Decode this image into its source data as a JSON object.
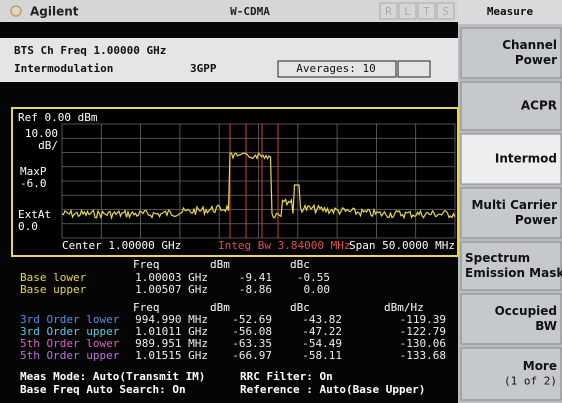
{
  "header": {
    "brand": "Agilent",
    "mode": "W-CDMA",
    "indicators": [
      "R",
      "L",
      "T",
      "S"
    ]
  },
  "menu": {
    "title": "Measure",
    "buttons": [
      [
        "Channel",
        "Power"
      ],
      [
        "ACPR"
      ],
      [
        "Intermod"
      ],
      [
        "Multi Carrier",
        "Power"
      ],
      [
        "Spectrum",
        "Emission Mask"
      ],
      [
        "Occupied",
        "BW"
      ],
      [
        "More",
        "(1 of 2)"
      ]
    ]
  },
  "info": {
    "line1": "BTS   Ch Freq 1.00000 GHz",
    "line2": "Intermodulation",
    "standard": "3GPP",
    "averages": "Averages: 10"
  },
  "plot": {
    "ref": "Ref 0.00 dBm",
    "scale": [
      "10.00",
      "dB/"
    ],
    "detector": [
      "MaxP",
      "-6.0"
    ],
    "atten": [
      "ExtAt",
      "0.0"
    ],
    "center": "Center 1.00000 GHz",
    "integ": "Integ Bw  3.84000 MHz",
    "span": "Span  50.0000 MHz"
  },
  "table1": {
    "headers": [
      "Freq",
      "dBm",
      "dBc"
    ],
    "rows": [
      [
        "Base lower",
        "1.00003 GHz",
        "-9.41",
        "-0.55"
      ],
      [
        "Base upper",
        "1.00507 GHz",
        "-8.86",
        "0.00"
      ]
    ]
  },
  "table2": {
    "headers": [
      "Freq",
      "dBm",
      "dBc",
      "dBm/Hz"
    ],
    "rows": [
      [
        "3rd Order lower",
        "994.990 MHz",
        "-52.69",
        "-43.82",
        "-119.39"
      ],
      [
        "3rd Order upper",
        "1.01011 GHz",
        "-56.08",
        "-47.22",
        "-122.79"
      ],
      [
        "5th Order lower",
        "989.951 MHz",
        "-63.35",
        "-54.49",
        "-130.06"
      ],
      [
        "5th Order upper",
        "1.01515 GHz",
        "-66.97",
        "-58.11",
        "-133.68"
      ]
    ]
  },
  "footer": {
    "left": [
      "Meas Mode: Auto(Transmit IM)",
      "Base Freq Auto Search: On"
    ],
    "right": [
      "RRC Filter: On",
      "Reference : Auto(Base Upper)"
    ]
  }
}
